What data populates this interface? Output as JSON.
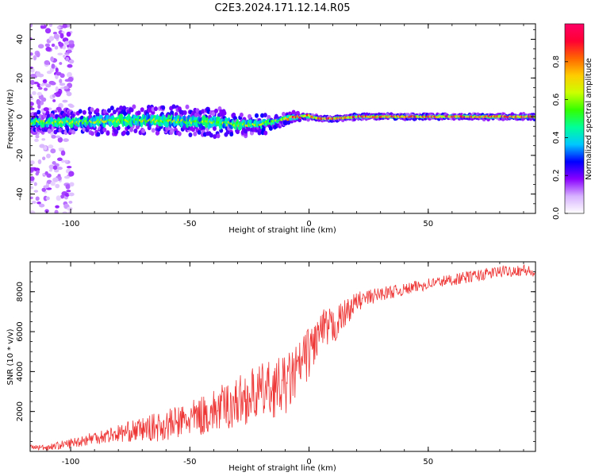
{
  "title": "C2E3.2024.171.12.14.R05",
  "chart_data": [
    {
      "type": "heatmap",
      "xlabel": "Height of straight line (km)",
      "ylabel": "Frequency (Hz)",
      "xlim": [
        -117,
        95
      ],
      "ylim": [
        -50,
        48
      ],
      "xticks": [
        -100,
        -50,
        0,
        50
      ],
      "yticks": [
        -40,
        -20,
        0,
        20,
        40
      ],
      "grid": false,
      "description_series": [
        {
          "name": "ridge_center_hz",
          "x": [
            -117,
            -100,
            -80,
            -60,
            -40,
            -30,
            -20,
            -10,
            -5,
            0,
            5,
            10,
            20,
            40,
            60,
            80,
            95
          ],
          "values": [
            -3,
            -3,
            -2,
            -2,
            -3,
            -4,
            -4,
            -1,
            0,
            0,
            -1,
            -1,
            0,
            0,
            0,
            0,
            0
          ]
        },
        {
          "name": "ridge_halfwidth_hz",
          "x": [
            -117,
            -100,
            -80,
            -60,
            -40,
            -20,
            -10,
            0,
            20,
            50,
            95
          ],
          "values": [
            4,
            5,
            6,
            6,
            6,
            4,
            2,
            1,
            2,
            2,
            2
          ]
        }
      ],
      "colorbar": {
        "label": "Normalized spectral amplitude",
        "range": [
          0.0,
          1.0
        ],
        "ticks": [
          "0.0",
          "0.2",
          "0.4",
          "0.6",
          "0.8"
        ],
        "stops": [
          "#ffffff",
          "#d7b2ff",
          "#8a00ff",
          "#0000ff",
          "#00c8ff",
          "#00ff99",
          "#33ff00",
          "#ccff00",
          "#ffcc00",
          "#ff6600",
          "#ff0033",
          "#ff0066"
        ]
      }
    },
    {
      "type": "line",
      "xlabel": "Height of straight line (km)",
      "ylabel": "SNR (10 * v/v)",
      "xlim": [
        -117,
        95
      ],
      "ylim": [
        0,
        9500
      ],
      "xticks": [
        -100,
        -50,
        0,
        50
      ],
      "yticks": [
        2000,
        4000,
        6000,
        8000
      ],
      "grid": false,
      "series": [
        {
          "name": "SNR",
          "color": "#ee3333",
          "x": [
            -117,
            -110,
            -100,
            -90,
            -80,
            -70,
            -60,
            -50,
            -40,
            -30,
            -20,
            -10,
            -5,
            0,
            5,
            10,
            15,
            20,
            25,
            30,
            40,
            50,
            60,
            70,
            80,
            90,
            95
          ],
          "values": [
            200,
            200,
            400,
            700,
            900,
            1100,
            1300,
            1600,
            2000,
            2500,
            3000,
            3300,
            4000,
            5000,
            6000,
            6200,
            6900,
            7500,
            7700,
            7900,
            8100,
            8400,
            8600,
            8800,
            9000,
            9100,
            8900
          ],
          "noise": [
            150,
            150,
            250,
            350,
            450,
            600,
            800,
            900,
            1100,
            1300,
            1400,
            1500,
            1400,
            1300,
            1100,
            1000,
            700,
            500,
            400,
            350,
            300,
            300,
            300,
            300,
            300,
            300,
            300
          ]
        }
      ]
    }
  ]
}
